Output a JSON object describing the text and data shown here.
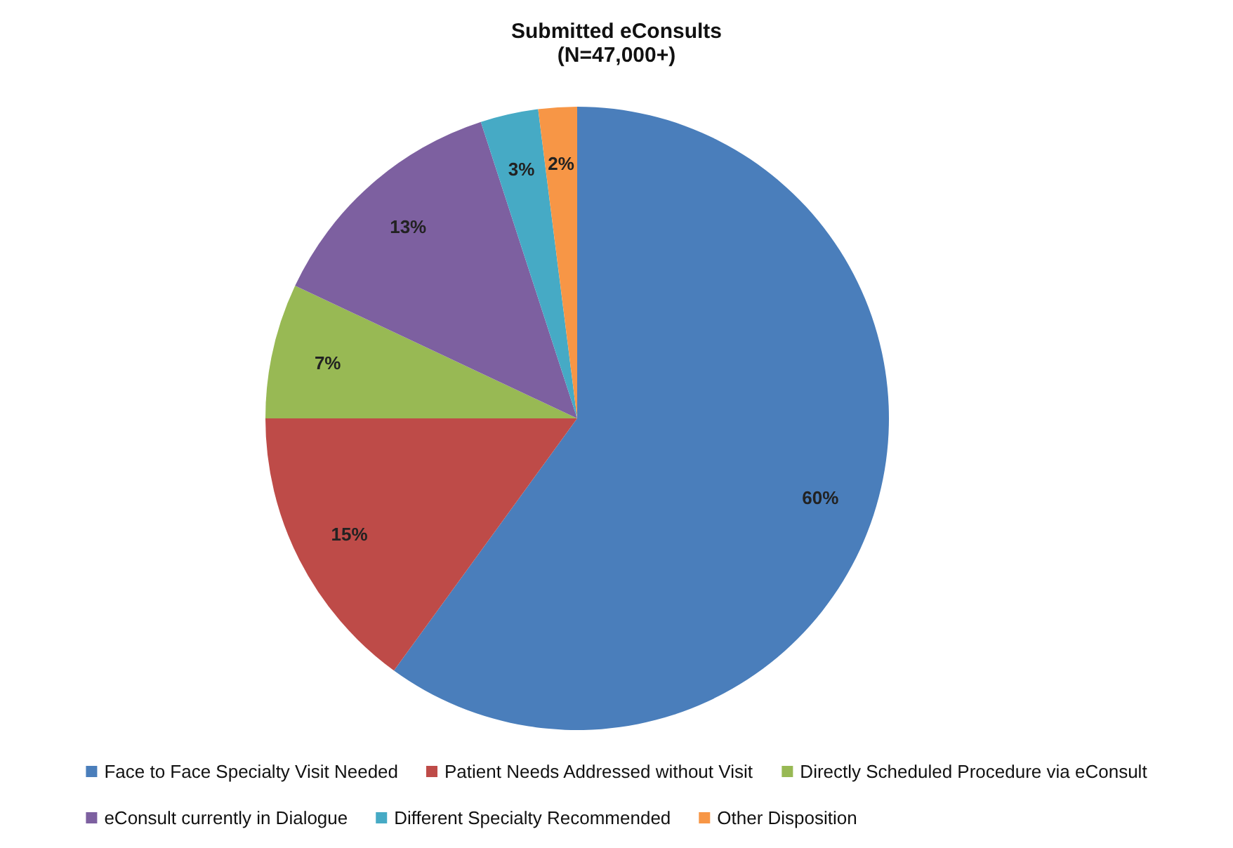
{
  "chart_data": {
    "type": "pie",
    "title": "Submitted eConsults",
    "subtitle": "(N=47,000+)",
    "categories": [
      "Face to Face Specialty Visit Needed",
      "Patient Needs Addressed without Visit",
      "Directly Scheduled Procedure via eConsult",
      "eConsult currently in Dialogue",
      "Different Specialty Recommended",
      "Other Disposition"
    ],
    "values": [
      60,
      15,
      7,
      13,
      3,
      2
    ],
    "colors": [
      "#4a7ebb",
      "#be4b48",
      "#98b954",
      "#7d60a0",
      "#46aac5",
      "#f79646"
    ],
    "value_labels": [
      "60%",
      "15%",
      "7%",
      "13%",
      "3%",
      "2%"
    ],
    "legend": "bottom"
  }
}
